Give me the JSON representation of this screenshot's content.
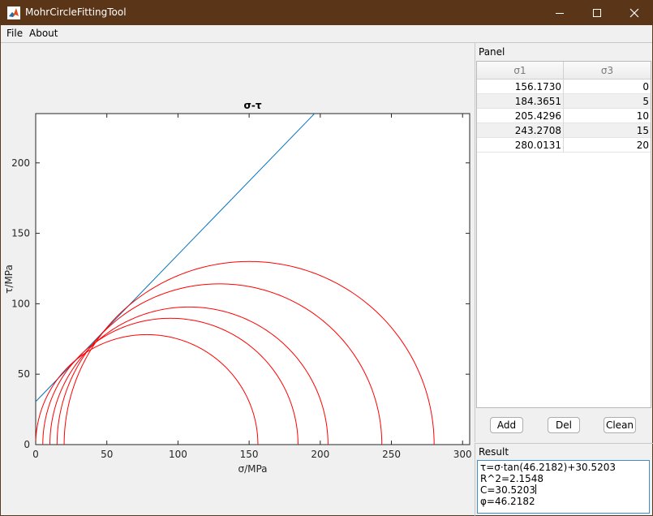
{
  "window": {
    "title": "MohrCircleFittingTool",
    "minimize_icon": "minimize-icon",
    "maximize_icon": "maximize-icon",
    "close_icon": "close-icon"
  },
  "menu": [
    "File",
    "About"
  ],
  "chart_data": {
    "type": "line",
    "title": "σ-τ",
    "xlabel": "σ/MPa",
    "ylabel": "τ/MPa",
    "xlim": [
      0,
      305
    ],
    "ylim": [
      0,
      235
    ],
    "xticks": [
      0,
      50,
      100,
      150,
      200,
      250,
      300
    ],
    "yticks": [
      0,
      50,
      100,
      150,
      200
    ],
    "grid": false,
    "fit_line": {
      "phi_deg": 46.2182,
      "c": 30.5203,
      "color": "#0072bd"
    },
    "circles": [
      {
        "sigma3": 0,
        "sigma1": 156.173
      },
      {
        "sigma3": 5,
        "sigma1": 184.3651
      },
      {
        "sigma3": 10,
        "sigma1": 205.4296
      },
      {
        "sigma3": 15,
        "sigma1": 243.2708
      },
      {
        "sigma3": 20,
        "sigma1": 280.0131
      }
    ],
    "circle_color": "#ff0000"
  },
  "panel": {
    "title": "Panel",
    "columns": [
      "σ1",
      "σ3"
    ],
    "rows": [
      [
        "156.1730",
        "0"
      ],
      [
        "184.3651",
        "5"
      ],
      [
        "205.4296",
        "10"
      ],
      [
        "243.2708",
        "15"
      ],
      [
        "280.0131",
        "20"
      ]
    ],
    "buttons": {
      "add": "Add",
      "del": "Del",
      "clean": "Clean"
    }
  },
  "result": {
    "title": "Result",
    "lines": [
      "τ=σ·tan(46.2182)+30.5203",
      "R^2=2.1548",
      "C=30.5203",
      "φ=46.2182"
    ]
  }
}
